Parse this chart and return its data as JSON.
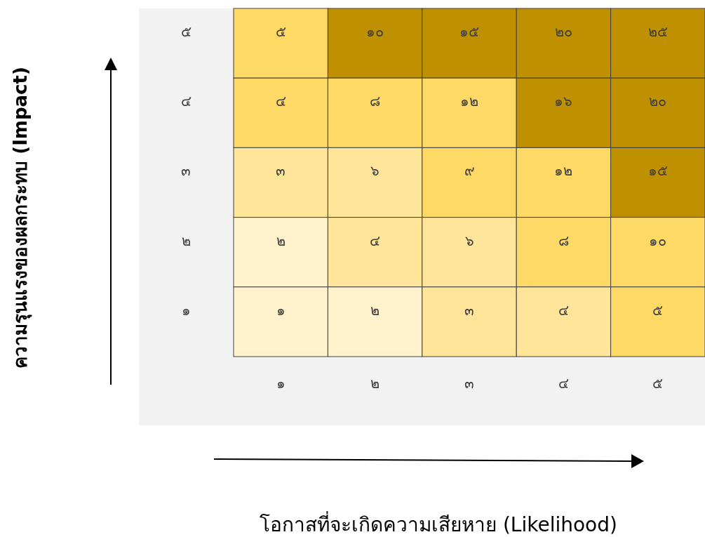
{
  "chart_data": {
    "type": "heatmap",
    "annotations": [
      "โอกาสที่จะเกิดความเสียหาย (Likelihood)",
      "ความรุนแรงของผลกระทบ (Impact)"
    ],
    "categories": [
      "๑",
      "๒",
      "๓",
      "๔",
      "๕"
    ],
    "y_categories": [
      "๕",
      "๔",
      "๓",
      "๒",
      "๑"
    ],
    "cells": [
      [
        5,
        10,
        15,
        20,
        25
      ],
      [
        4,
        8,
        12,
        16,
        20
      ],
      [
        3,
        6,
        9,
        12,
        15
      ],
      [
        2,
        4,
        6,
        8,
        10
      ],
      [
        1,
        2,
        3,
        4,
        5
      ]
    ],
    "cell_labels": [
      [
        "๕",
        "๑๐",
        "๑๕",
        "๒๐",
        "๒๕"
      ],
      [
        "๔",
        "๘",
        "๑๒",
        "๑๖",
        "๒๐"
      ],
      [
        "๓",
        "๖",
        "๙",
        "๑๒",
        "๑๕"
      ],
      [
        "๒",
        "๔",
        "๖",
        "๘",
        "๑๐"
      ],
      [
        "๑",
        "๒",
        "๓",
        "๔",
        "๕"
      ]
    ],
    "colors": [
      [
        "#ffd966",
        "#bf9000",
        "#bf9000",
        "#bf9000",
        "#bf9000"
      ],
      [
        "#ffd966",
        "#ffd966",
        "#ffd966",
        "#bf9000",
        "#bf9000"
      ],
      [
        "#ffe599",
        "#ffe599",
        "#ffd966",
        "#ffd966",
        "#bf9000"
      ],
      [
        "#fff2cc",
        "#ffe599",
        "#ffe599",
        "#ffd966",
        "#ffd966"
      ],
      [
        "#fff2cc",
        "#fff2cc",
        "#ffe599",
        "#ffe599",
        "#ffd966"
      ]
    ]
  }
}
